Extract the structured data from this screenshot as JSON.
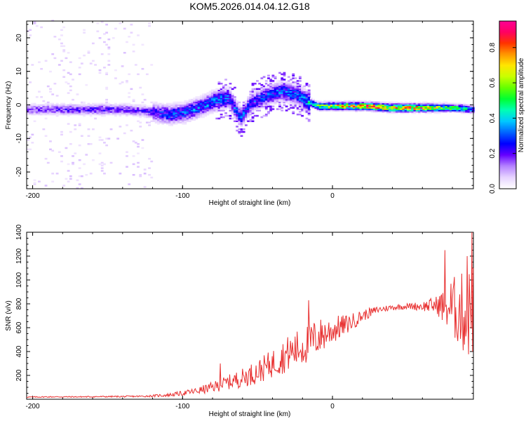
{
  "title": "KOM5.2026.014.04.12.G18",
  "chart_data": [
    {
      "type": "heatmap",
      "name": "spectrogram",
      "xlabel": "Height of straight line (km)",
      "ylabel": "Frequency (Hz)",
      "xlim": [
        -204,
        94
      ],
      "ylim": [
        -25,
        25
      ],
      "xticks": [
        -200,
        -100,
        0
      ],
      "xtick_labels": [
        "-200",
        "-100",
        "0"
      ],
      "yticks": [
        -20,
        -10,
        0,
        10,
        20
      ],
      "ytick_labels": [
        "-20",
        "-10",
        "0",
        "10",
        "20"
      ],
      "colorbar": {
        "label": "Normalized spectral amplitude",
        "range": [
          0,
          0.95
        ],
        "ticks": [
          0.0,
          0.2,
          0.4,
          0.6,
          0.8
        ],
        "tick_labels": [
          "0.0",
          "0.2",
          "0.4",
          "0.6",
          "0.8"
        ],
        "colors": [
          "#ffffff",
          "#e6d2ff",
          "#b482ff",
          "#6400ff",
          "#0000ff",
          "#0064ff",
          "#00c8ff",
          "#00ffb4",
          "#00ff32",
          "#64ff00",
          "#c8ff00",
          "#ffe600",
          "#ff9600",
          "#ff3200",
          "#ff0064",
          "#ff0096"
        ]
      },
      "ridge": {
        "x": [
          -200,
          -180,
          -160,
          -140,
          -125,
          -110,
          -100,
          -90,
          -80,
          -70,
          -62,
          -55,
          -45,
          -35,
          -25,
          -18,
          -10,
          0,
          10,
          20,
          40,
          60,
          80,
          94
        ],
        "y": [
          -1.5,
          -1.5,
          -1.5,
          -1.5,
          -2.0,
          -3.0,
          -2.5,
          -1.0,
          1.0,
          2.0,
          -4.0,
          0.5,
          2.5,
          4.0,
          3.0,
          1.0,
          -0.5,
          -0.5,
          -0.5,
          -0.5,
          -1.0,
          -1.0,
          -1.0,
          -1.5
        ],
        "amplitude": [
          0.18,
          0.2,
          0.22,
          0.22,
          0.22,
          0.3,
          0.32,
          0.33,
          0.35,
          0.33,
          0.3,
          0.28,
          0.3,
          0.32,
          0.33,
          0.4,
          0.55,
          0.7,
          0.8,
          0.85,
          0.85,
          0.8,
          0.55,
          0.35
        ]
      }
    },
    {
      "type": "line",
      "name": "snr",
      "xlabel": "Height of straight line (km)",
      "ylabel": "SNR (v/v)",
      "xlim": [
        -204,
        94
      ],
      "ylim": [
        0,
        1400
      ],
      "xticks": [
        -200,
        -100,
        0
      ],
      "xtick_labels": [
        "-200",
        "-100",
        "0"
      ],
      "yticks": [
        200,
        400,
        600,
        800,
        1000,
        1200,
        1400
      ],
      "ytick_labels": [
        "200",
        "400",
        "600",
        "800",
        "1000",
        "1200",
        "1400"
      ],
      "color": "#e83030",
      "series": [
        {
          "name": "SNR",
          "x": [
            -204,
            -190,
            -170,
            -150,
            -130,
            -120,
            -110,
            -100,
            -90,
            -80,
            -70,
            -60,
            -50,
            -40,
            -30,
            -20,
            -10,
            0,
            10,
            20,
            30,
            40,
            50,
            60,
            70,
            75,
            80,
            85,
            90,
            94
          ],
          "values": [
            18,
            20,
            20,
            22,
            24,
            28,
            35,
            50,
            70,
            100,
            140,
            180,
            230,
            300,
            380,
            440,
            520,
            580,
            630,
            700,
            750,
            770,
            780,
            780,
            790,
            780,
            770,
            740,
            700,
            780
          ],
          "spread": [
            4,
            5,
            5,
            6,
            7,
            9,
            14,
            20,
            30,
            45,
            60,
            80,
            100,
            120,
            150,
            170,
            160,
            120,
            80,
            50,
            30,
            25,
            25,
            40,
            80,
            180,
            260,
            320,
            380,
            420
          ]
        }
      ],
      "peaks": [
        {
          "x": -75,
          "y": 300
        },
        {
          "x": -16,
          "y": 830
        },
        {
          "x": 75,
          "y": 1250
        },
        {
          "x": 90,
          "y": 1200
        },
        {
          "x": 93,
          "y": 1400
        }
      ]
    }
  ]
}
